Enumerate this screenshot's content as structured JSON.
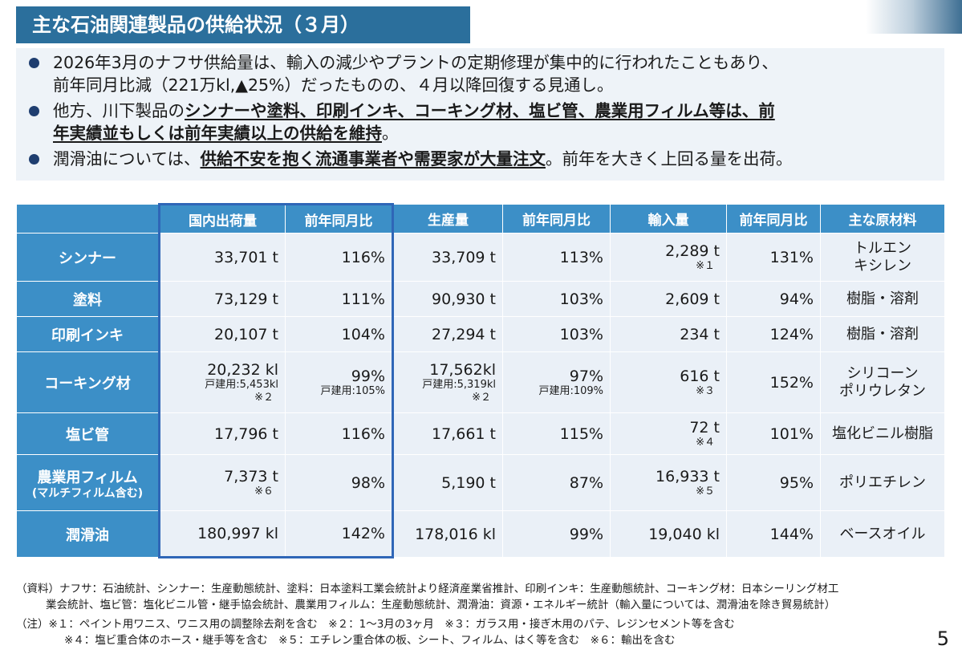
{
  "title": "主な石油関連製品の供給状況（３月）",
  "bullets": [
    {
      "lines": [
        "2026年3月のナフサ供給量は、輸入の減少やプラントの定期修理が集中的に行われたこともあり、",
        "前年同月比減（221万kl,▲25%）だったものの、４月以降回復する見通し。"
      ]
    },
    {
      "pre": "他方、川下製品の",
      "emph1": "シンナーや塗料、印刷インキ、コーキング材、塩ビ管、農業用フィルム等は、前",
      "emph2": "年実績並もしくは前年実績以上の供給を維持",
      "post": "。"
    },
    {
      "pre": "潤滑油については、",
      "emph": "供給不安を抱く流通事業者や需要家が大量注文",
      "post": "。前年を大きく上回る量を出荷。"
    }
  ],
  "table": {
    "headers": [
      "国内出荷量",
      "前年同月比",
      "生産量",
      "前年同月比",
      "輸入量",
      "前年同月比",
      "主な原材料"
    ],
    "rows": [
      {
        "name": "シンナー",
        "name_sub": "",
        "shipment": "33,701 t",
        "shipment_sub": "",
        "shipment_note": "",
        "shipment_yoy": "116%",
        "shipment_yoy_sub": "",
        "production": "33,709 t",
        "production_sub": "",
        "production_note": "",
        "production_yoy": "113%",
        "production_yoy_sub": "",
        "imports": "2,289 t",
        "imports_note": "※１",
        "imports_yoy": "131%",
        "materials": [
          "トルエン",
          "キシレン"
        ]
      },
      {
        "name": "塗料",
        "name_sub": "",
        "shipment": "73,129 t",
        "shipment_sub": "",
        "shipment_note": "",
        "shipment_yoy": "111%",
        "shipment_yoy_sub": "",
        "production": "90,930 t",
        "production_sub": "",
        "production_note": "",
        "production_yoy": "103%",
        "production_yoy_sub": "",
        "imports": "2,609 t",
        "imports_note": "",
        "imports_yoy": "94%",
        "materials": [
          "樹脂・溶剤"
        ]
      },
      {
        "name": "印刷インキ",
        "name_sub": "",
        "shipment": "20,107 t",
        "shipment_sub": "",
        "shipment_note": "",
        "shipment_yoy": "104%",
        "shipment_yoy_sub": "",
        "production": "27,294 t",
        "production_sub": "",
        "production_note": "",
        "production_yoy": "103%",
        "production_yoy_sub": "",
        "imports": "234 t",
        "imports_note": "",
        "imports_yoy": "124%",
        "materials": [
          "樹脂・溶剤"
        ]
      },
      {
        "name": "コーキング材",
        "name_sub": "",
        "shipment": "20,232 kl",
        "shipment_sub": "戸建用:5,453kl",
        "shipment_note": "※２",
        "shipment_yoy": "99%",
        "shipment_yoy_sub": "戸建用:105%",
        "production": "17,562kl",
        "production_sub": "戸建用:5,319kl",
        "production_note": "※２",
        "production_yoy": "97%",
        "production_yoy_sub": "戸建用:109%",
        "imports": "616 t",
        "imports_note": "※３",
        "imports_yoy": "152%",
        "materials": [
          "シリコーン",
          "ポリウレタン"
        ]
      },
      {
        "name": "塩ビ管",
        "name_sub": "",
        "shipment": "17,796 t",
        "shipment_sub": "",
        "shipment_note": "",
        "shipment_yoy": "116%",
        "shipment_yoy_sub": "",
        "production": "17,661 t",
        "production_sub": "",
        "production_note": "",
        "production_yoy": "115%",
        "production_yoy_sub": "",
        "imports": "72 t",
        "imports_note": "※４",
        "imports_yoy": "101%",
        "materials": [
          "塩化ビニル樹脂"
        ]
      },
      {
        "name": "農業用フィルム",
        "name_sub": "(マルチフィルム含む)",
        "shipment": "7,373 t",
        "shipment_sub": "",
        "shipment_note": "※６",
        "shipment_yoy": "98%",
        "shipment_yoy_sub": "",
        "production": "5,190 t",
        "production_sub": "",
        "production_note": "",
        "production_yoy": "87%",
        "production_yoy_sub": "",
        "imports": "16,933 t",
        "imports_note": "※５",
        "imports_yoy": "95%",
        "materials": [
          "ポリエチレン"
        ]
      },
      {
        "name": "潤滑油",
        "name_sub": "",
        "shipment": "180,997 kl",
        "shipment_sub": "",
        "shipment_note": "",
        "shipment_yoy": "142%",
        "shipment_yoy_sub": "",
        "production": "178,016 kl",
        "production_sub": "",
        "production_note": "",
        "production_yoy": "99%",
        "production_yoy_sub": "",
        "imports": "19,040 kl",
        "imports_note": "",
        "imports_yoy": "144%",
        "materials": [
          "ベースオイル"
        ]
      }
    ]
  },
  "footer": {
    "source_line1": "（資料）ナフサ：石油統計、シンナー：生産動態統計、塗料：日本塗料工業会統計より経済産業省推計、印刷インキ：生産動態統計、コーキング材：日本シーリング材工",
    "source_line2": "業会統計、塩ビ管：塩化ビニル管・継手協会統計、農業用フィルム：生産動態統計、潤滑油：資源・エネルギー統計（輸入量については、潤滑油を除き貿易統計）",
    "notes_line1": "（注）※１：ペイント用ワニス、ワニス用の調整除去剤を含む　※２：1～3月の3ヶ月　※３：ガラス用・接ぎ木用のパテ、レジンセメント等を含む",
    "notes_line2": "※４：塩ビ重合体のホース・継手等を含む　※５：エチレン重合体の板、シート、フィルム、はく等を含む　※６：輸出を含む"
  },
  "page_number": "5",
  "colors": {
    "title_bg": "#2b6f9c",
    "header_bg": "#3c8fc7",
    "cell_bg": "#eaf0f7",
    "highlight_border": "#2f66b7",
    "bullet_bg": "#eef3f8"
  }
}
